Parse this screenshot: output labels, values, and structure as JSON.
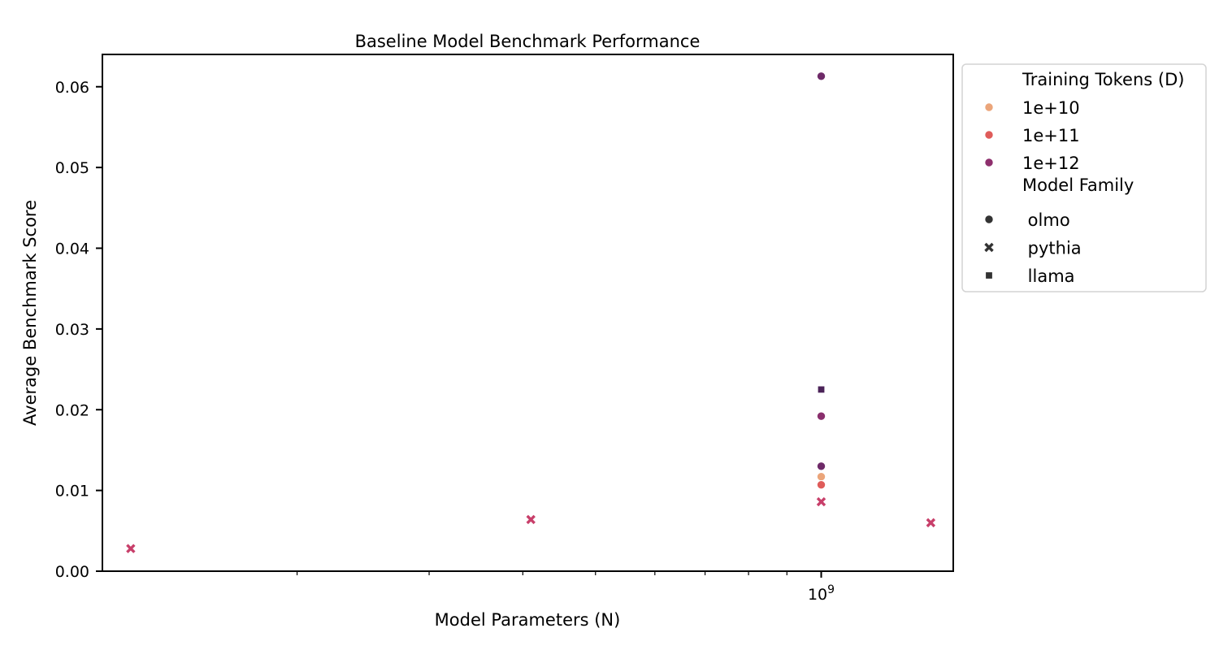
{
  "chart_data": {
    "type": "scatter",
    "title": "Baseline Model Benchmark Performance",
    "xlabel": "Model Parameters (N)",
    "ylabel": "Average Benchmark Score",
    "xscale": "log",
    "xlim": [
      110000000,
      1500000000
    ],
    "ylim": [
      0,
      0.064
    ],
    "x_major_ticks": [
      1000000000
    ],
    "x_major_tick_labels": [
      "10^9"
    ],
    "x_minor_ticks": [
      200000000,
      300000000,
      400000000,
      500000000,
      600000000,
      700000000,
      800000000,
      900000000
    ],
    "y_ticks": [
      0.0,
      0.01,
      0.02,
      0.03,
      0.04,
      0.05,
      0.06
    ],
    "y_tick_labels": [
      "0.00",
      "0.01",
      "0.02",
      "0.03",
      "0.04",
      "0.05",
      "0.06"
    ],
    "grid": false,
    "legend_position": "outside-right",
    "hue": {
      "title": "Training Tokens (D)",
      "levels": [
        {
          "label": "1e+10",
          "color": "#eba57a"
        },
        {
          "label": "1e+11",
          "color": "#df5c5a"
        },
        {
          "label": "1e+12",
          "color": "#8e2f6d"
        }
      ]
    },
    "style": {
      "title": "Model Family",
      "levels": [
        {
          "label": " olmo",
          "marker": "circle"
        },
        {
          "label": " pythia",
          "marker": "x"
        },
        {
          "label": " llama",
          "marker": "square"
        }
      ]
    },
    "points": [
      {
        "family": "pythia",
        "x": 120000000,
        "y": 0.0028,
        "color": "#c83f6a"
      },
      {
        "family": "pythia",
        "x": 410000000,
        "y": 0.0064,
        "color": "#c83f6a"
      },
      {
        "family": "pythia",
        "x": 1000000000,
        "y": 0.0086,
        "color": "#c83f6a"
      },
      {
        "family": "pythia",
        "x": 1400000000,
        "y": 0.006,
        "color": "#c83f6a"
      },
      {
        "family": "olmo",
        "x": 1000000000,
        "y": 0.0613,
        "color": "#6e2a68"
      },
      {
        "family": "olmo",
        "x": 1000000000,
        "y": 0.0192,
        "color": "#8a2f6d"
      },
      {
        "family": "olmo",
        "x": 1000000000,
        "y": 0.013,
        "color": "#6e2a68"
      },
      {
        "family": "olmo",
        "x": 1000000000,
        "y": 0.0117,
        "color": "#eba57a"
      },
      {
        "family": "olmo",
        "x": 1000000000,
        "y": 0.0107,
        "color": "#df5c5a"
      },
      {
        "family": "llama",
        "x": 1000000000,
        "y": 0.0225,
        "color": "#4b2358"
      }
    ]
  }
}
